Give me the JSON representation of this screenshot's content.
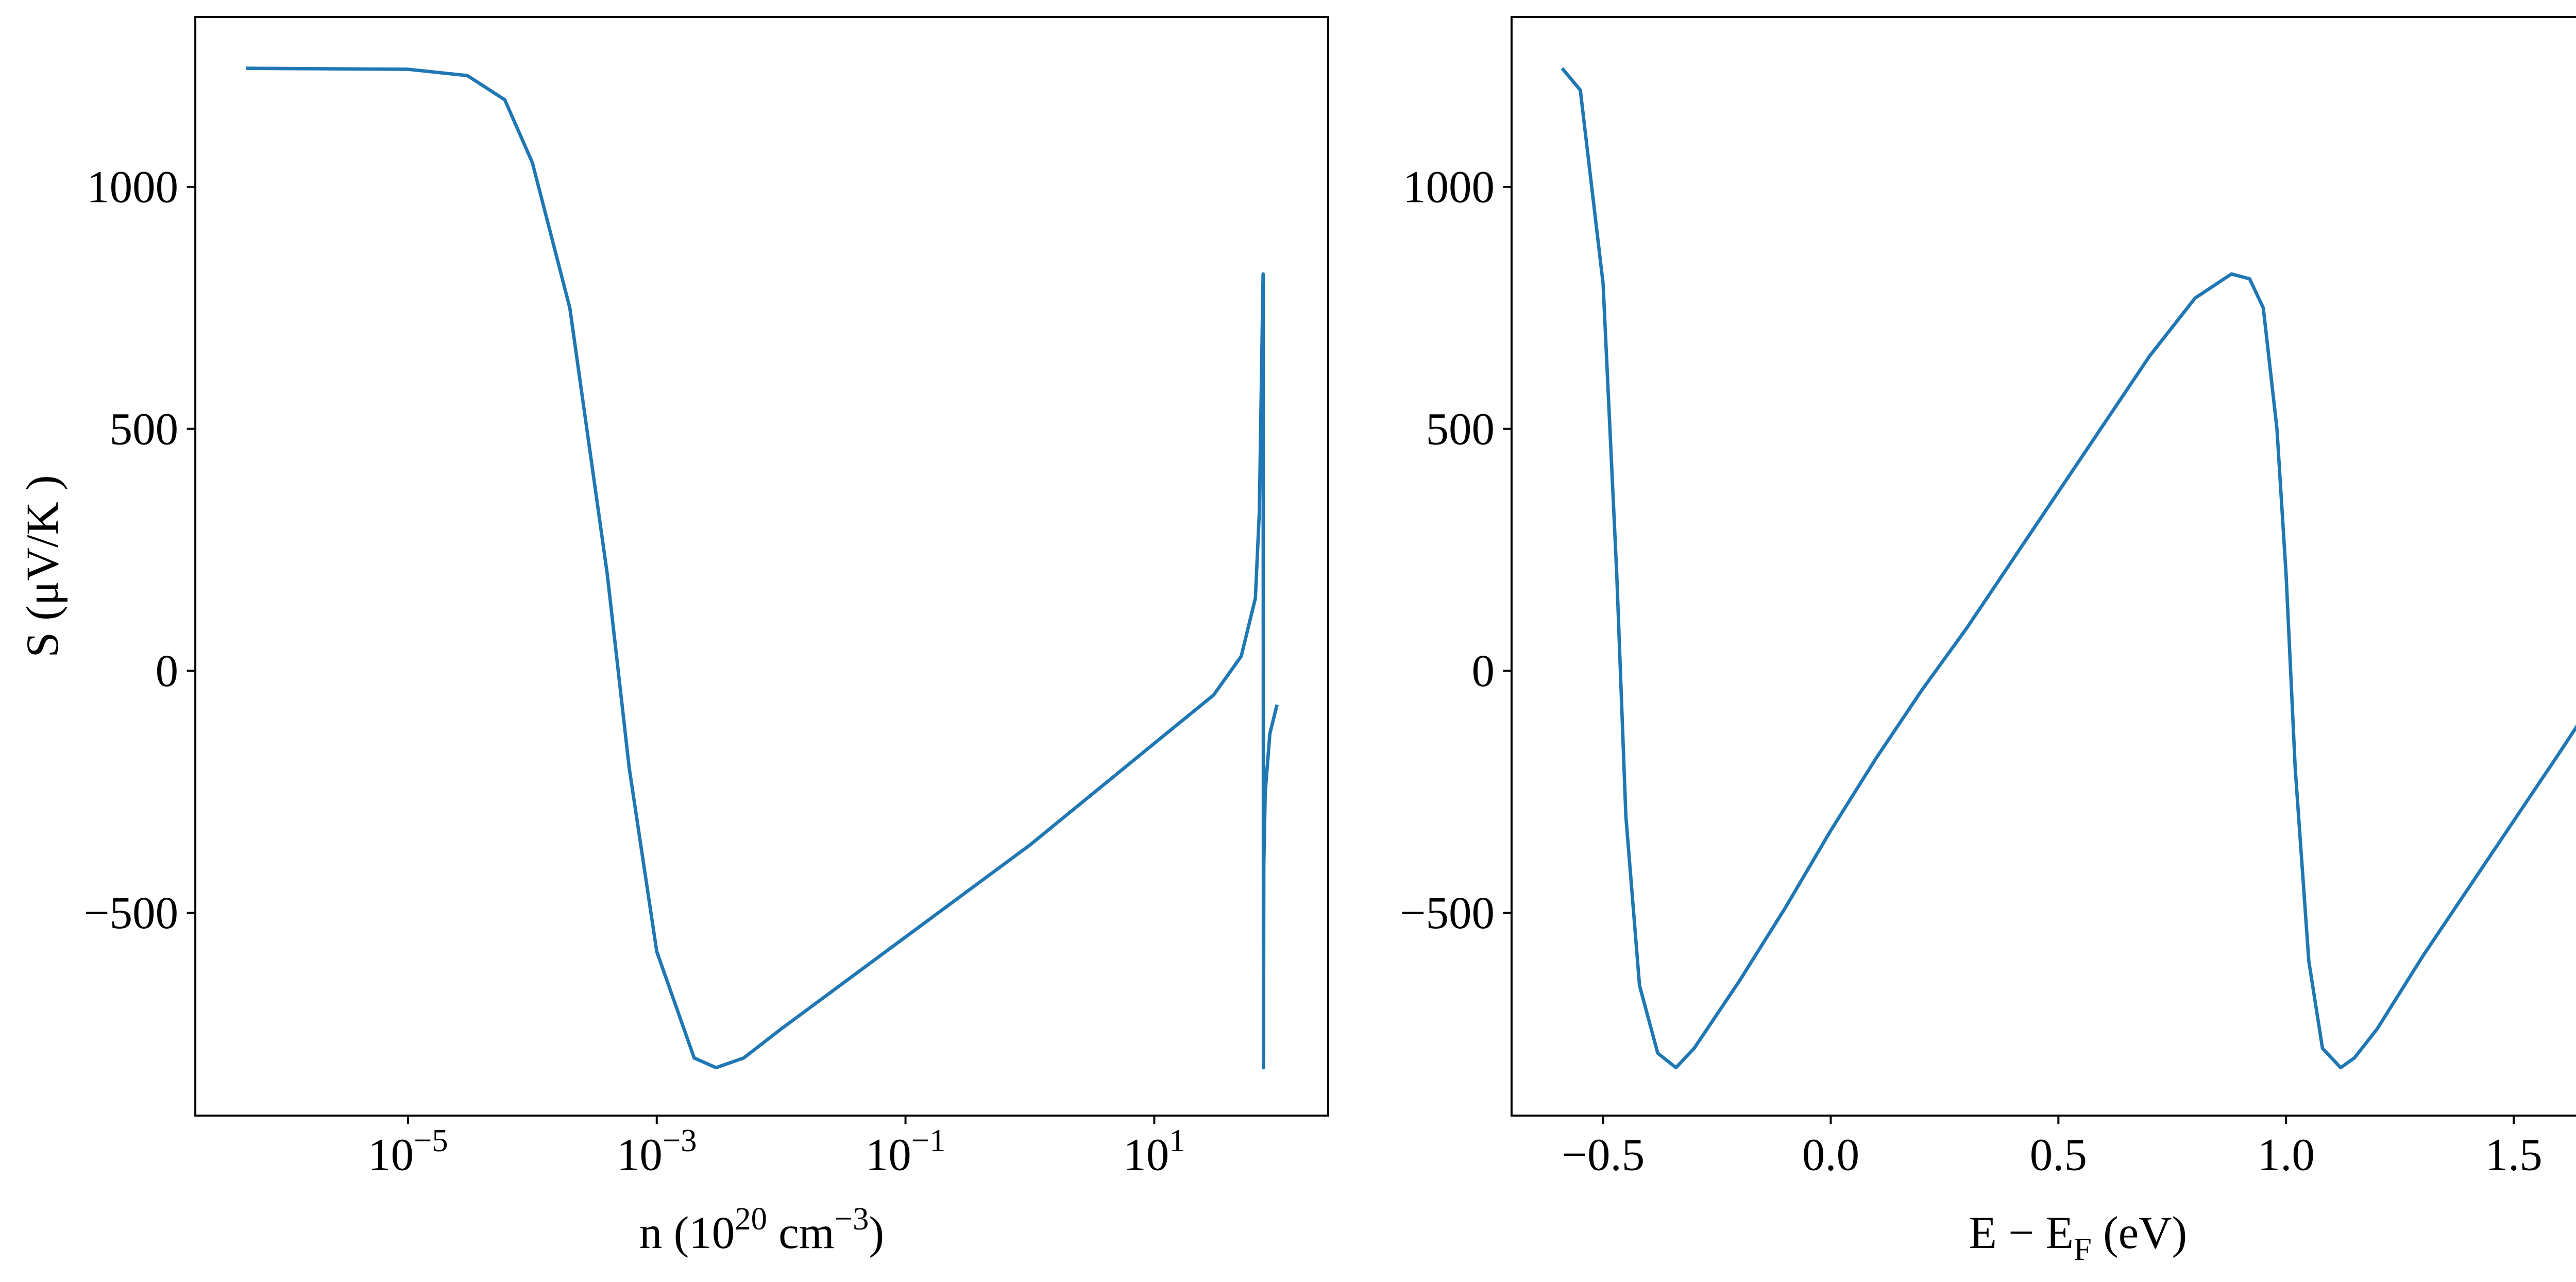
{
  "chart_data": [
    {
      "type": "line",
      "xscale": "log",
      "color": "#1f77b4",
      "xlabel": [
        {
          "text": "n (10"
        },
        {
          "text": "20",
          "sup": true
        },
        {
          "text": " cm"
        },
        {
          "text": "−3",
          "sup": true
        },
        {
          "text": ")"
        }
      ],
      "ylabel": "S (μV/K )",
      "x": [
        5e-07,
        1e-05,
        3e-05,
        6e-05,
        0.0001,
        0.0002,
        0.0004,
        0.0006,
        0.001,
        0.002,
        0.003,
        0.005,
        0.01,
        0.1,
        1,
        10,
        30,
        50,
        65,
        70,
        75,
        75.5,
        76,
        78,
        85,
        97
      ],
      "values": [
        1245,
        1243,
        1230,
        1180,
        1050,
        750,
        200,
        -200,
        -580,
        -800,
        -820,
        -800,
        -740,
        -550,
        -360,
        -150,
        -50,
        30,
        150,
        330,
        820,
        -820,
        -400,
        -250,
        -130,
        -70
      ],
      "xlim": [
        1.95e-07,
        250
      ],
      "ylim": [
        -919,
        1351
      ],
      "xticks": [
        {
          "value": 1e-05,
          "label": "10",
          "exponent": "−5"
        },
        {
          "value": 0.001,
          "label": "10",
          "exponent": "−3"
        },
        {
          "value": 0.1,
          "label": "10",
          "exponent": "−1"
        },
        {
          "value": 10,
          "label": "10",
          "exponent": "1"
        }
      ],
      "yticks": [
        {
          "value": -500,
          "label": "−500"
        },
        0,
        500,
        1000
      ]
    },
    {
      "type": "line",
      "xscale": "linear",
      "color": "#1f77b4",
      "xlabel": [
        {
          "text": "E − E"
        },
        {
          "text": "F",
          "sub": true
        },
        {
          "text": " (eV)"
        }
      ],
      "x": [
        -0.59,
        -0.55,
        -0.5,
        -0.47,
        -0.45,
        -0.42,
        -0.38,
        -0.34,
        -0.3,
        -0.2,
        -0.1,
        0.0,
        0.1,
        0.2,
        0.3,
        0.4,
        0.5,
        0.6,
        0.7,
        0.8,
        0.88,
        0.92,
        0.95,
        0.98,
        1.0,
        1.02,
        1.05,
        1.08,
        1.12,
        1.15,
        1.2,
        1.3,
        1.4,
        1.5,
        1.6,
        1.67
      ],
      "values": [
        1245,
        1200,
        800,
        200,
        -300,
        -650,
        -790,
        -820,
        -780,
        -640,
        -490,
        -330,
        -180,
        -40,
        90,
        230,
        370,
        510,
        650,
        770,
        820,
        810,
        750,
        500,
        200,
        -200,
        -600,
        -780,
        -820,
        -800,
        -740,
        -590,
        -450,
        -310,
        -170,
        -70
      ],
      "xlim": [
        -0.701,
        1.787
      ],
      "ylim": [
        -919,
        1351
      ],
      "xticks": [
        {
          "value": -0.5,
          "label": "−0.5"
        },
        {
          "value": 0,
          "label": "0.0"
        },
        0.5,
        {
          "value": 1,
          "label": "1.0"
        },
        1.5
      ],
      "yticks": [
        {
          "value": -500,
          "label": "−500"
        },
        0,
        500,
        1000
      ]
    }
  ]
}
